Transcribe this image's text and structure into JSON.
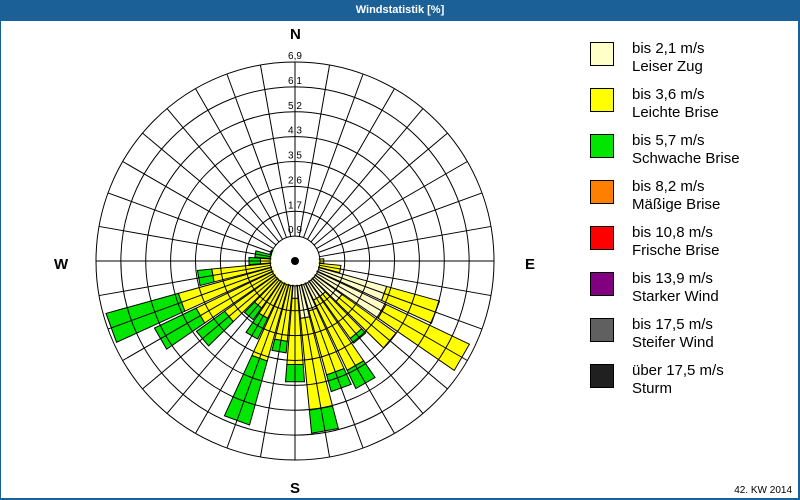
{
  "title": "Windstatistik [%]",
  "footer": "42. KW 2014",
  "directions": {
    "n": "N",
    "e": "E",
    "s": "S",
    "w": "W"
  },
  "chart_data": {
    "type": "polar-stacked-bar (wind rose)",
    "title": "Windstatistik [%]",
    "radial_ticks": [
      "0,9",
      "1,7",
      "2,6",
      "3,5",
      "4,3",
      "5,2",
      "6,1",
      "6,9"
    ],
    "radial_max": 6.9,
    "sector_width_deg": 10,
    "speed_classes": [
      "bis 2,1 m/s",
      "bis 3,6 m/s",
      "bis 5,7 m/s"
    ],
    "sectors": [
      {
        "dir": 80,
        "values": [
          0.0,
          0.8,
          0.0
        ]
      },
      {
        "dir": 90,
        "values": [
          0.0,
          1.0,
          0.0
        ]
      },
      {
        "dir": 100,
        "values": [
          0.5,
          1.1,
          0.0
        ]
      },
      {
        "dir": 110,
        "values": [
          3.3,
          1.9,
          0.0
        ]
      },
      {
        "dir": 120,
        "values": [
          3.5,
          3.2,
          0.0
        ]
      },
      {
        "dir": 130,
        "values": [
          2.0,
          2.3,
          0.0
        ]
      },
      {
        "dir": 140,
        "values": [
          1.5,
          1.8,
          0.2
        ]
      },
      {
        "dir": 150,
        "values": [
          1.5,
          2.7,
          0.7
        ]
      },
      {
        "dir": 160,
        "values": [
          1.8,
          2.3,
          0.6
        ]
      },
      {
        "dir": 170,
        "values": [
          2.0,
          3.2,
          0.8
        ]
      },
      {
        "dir": 180,
        "values": [
          1.3,
          2.3,
          0.6
        ]
      },
      {
        "dir": 190,
        "values": [
          0.8,
          2.0,
          0.4
        ]
      },
      {
        "dir": 200,
        "values": [
          0.0,
          3.6,
          2.3
        ]
      },
      {
        "dir": 210,
        "values": [
          0.0,
          2.2,
          0.8
        ]
      },
      {
        "dir": 220,
        "values": [
          0.0,
          2.0,
          0.5
        ]
      },
      {
        "dir": 230,
        "values": [
          0.0,
          3.0,
          1.2
        ]
      },
      {
        "dir": 240,
        "values": [
          0.0,
          3.8,
          1.6
        ]
      },
      {
        "dir": 250,
        "values": [
          0.0,
          4.2,
          2.6
        ]
      },
      {
        "dir": 260,
        "values": [
          0.0,
          2.9,
          0.5
        ]
      },
      {
        "dir": 270,
        "values": [
          0.0,
          1.2,
          0.4
        ]
      },
      {
        "dir": 280,
        "values": [
          0.0,
          0.8,
          0.6
        ]
      },
      {
        "dir": 290,
        "values": [
          0.0,
          0.6,
          0.3
        ]
      }
    ]
  },
  "legend": [
    {
      "label1": "bis 2,1 m/s",
      "label2": "Leiser Zug",
      "color": "#ffffc8"
    },
    {
      "label1": "bis 3,6 m/s",
      "label2": "Leichte Brise",
      "color": "#ffff00"
    },
    {
      "label1": "bis 5,7 m/s",
      "label2": "Schwache Brise",
      "color": "#00e600"
    },
    {
      "label1": "bis 8,2 m/s",
      "label2": "Mäßige Brise",
      "color": "#ff8000"
    },
    {
      "label1": "bis 10,8 m/s",
      "label2": "Frische Brise",
      "color": "#ff0000"
    },
    {
      "label1": "bis 13,9 m/s",
      "label2": "Starker Wind",
      "color": "#800080"
    },
    {
      "label1": "bis 17,5 m/s",
      "label2": "Steifer Wind",
      "color": "#606060"
    },
    {
      "label1": "über 17,5 m/s",
      "label2": "Sturm",
      "color": "#202020"
    }
  ]
}
